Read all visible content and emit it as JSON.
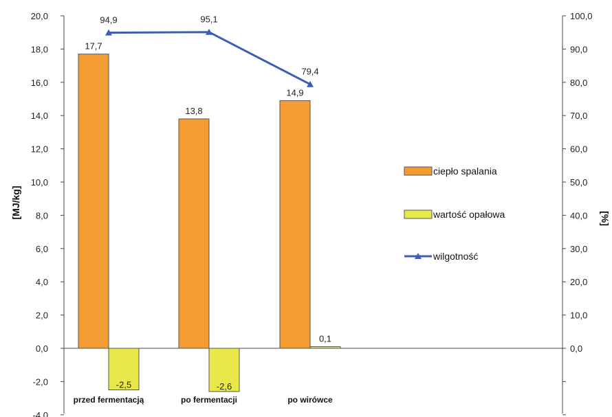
{
  "chart_data": {
    "type": "bar",
    "categories": [
      "przed fermentacją",
      "po fermentacji",
      "po wirówce"
    ],
    "series": [
      {
        "name": "ciepło spalania",
        "kind": "bar",
        "axis": "left",
        "color": "#F39C34",
        "values": [
          17.7,
          13.8,
          14.9
        ],
        "labels": [
          "17,7",
          "13,8",
          "14,9"
        ]
      },
      {
        "name": "wartość opałowa",
        "kind": "bar",
        "axis": "left",
        "color": "#E8E84A",
        "values": [
          -2.5,
          -2.6,
          0.1
        ],
        "labels": [
          "-2,5",
          "-2,6",
          "0,1"
        ]
      },
      {
        "name": "wilgotność",
        "kind": "line",
        "axis": "right",
        "color": "#3B5DB5",
        "marker": "triangle",
        "values": [
          94.9,
          95.1,
          79.4
        ],
        "labels": [
          "94,9",
          "95,1",
          "79,4"
        ]
      }
    ],
    "ylabel": "[MJ/kg]",
    "y2label": "[%]",
    "ylim": [
      -4.0,
      20.0
    ],
    "y2lim": [
      -20.0,
      100.0
    ],
    "yticks": [
      "-4,0",
      "-2,0",
      "0,0",
      "2,0",
      "4,0",
      "6,0",
      "8,0",
      "10,0",
      "12,0",
      "14,0",
      "16,0",
      "18,0",
      "20,0"
    ],
    "y2ticks": [
      "0,0",
      "10,0",
      "20,0",
      "30,0",
      "40,0",
      "50,0",
      "60,0",
      "70,0",
      "80,0",
      "90,0",
      "100,0"
    ],
    "grid": false,
    "legend_position": "right"
  }
}
